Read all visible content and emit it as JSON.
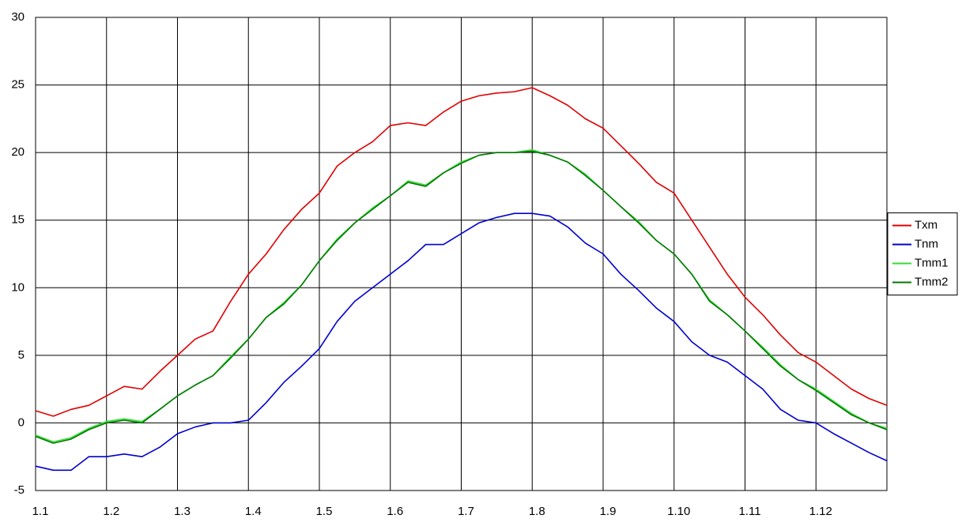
{
  "chart_data": {
    "type": "line",
    "categories": [
      "1.1",
      null,
      null,
      null,
      "1.2",
      null,
      null,
      null,
      "1.3",
      null,
      null,
      null,
      "1.4",
      null,
      null,
      null,
      "1.5",
      null,
      null,
      null,
      "1.6",
      null,
      null,
      null,
      "1.7",
      null,
      null,
      null,
      "1.8",
      null,
      null,
      null,
      "1.9",
      null,
      null,
      null,
      "1.10",
      null,
      null,
      null,
      "1.11",
      null,
      null,
      null,
      "1.12",
      null,
      null,
      null,
      null
    ],
    "series": [
      {
        "name": "Txm",
        "color": "#e00000",
        "values": [
          0.9,
          0.5,
          1.0,
          1.3,
          2.0,
          2.7,
          2.5,
          3.8,
          5.0,
          6.2,
          6.8,
          9.0,
          11.0,
          12.5,
          14.3,
          15.8,
          17.0,
          19.0,
          20.0,
          20.8,
          22.0,
          22.2,
          22.0,
          23.0,
          23.8,
          24.2,
          24.4,
          24.5,
          24.8,
          24.2,
          23.5,
          22.5,
          21.8,
          20.5,
          19.2,
          17.8,
          17.0,
          15.0,
          13.0,
          11.0,
          9.3,
          8.0,
          6.5,
          5.2,
          4.5,
          3.5,
          2.5,
          1.8,
          1.3
        ]
      },
      {
        "name": "Tnm",
        "color": "#0000d0",
        "values": [
          -3.2,
          -3.5,
          -3.5,
          -2.5,
          -2.5,
          -2.3,
          -2.5,
          -1.8,
          -0.8,
          -0.3,
          0.0,
          0.0,
          0.2,
          1.5,
          3.0,
          4.2,
          5.5,
          7.5,
          9.0,
          10.0,
          11.0,
          12.0,
          13.2,
          13.2,
          14.0,
          14.8,
          15.2,
          15.5,
          15.5,
          15.3,
          14.5,
          13.3,
          12.5,
          11.0,
          9.8,
          8.5,
          7.5,
          6.0,
          5.0,
          4.5,
          3.5,
          2.5,
          1.0,
          0.2,
          0.0,
          -0.8,
          -1.5,
          -2.2,
          -2.8
        ]
      },
      {
        "name": "Tmm1",
        "color": "#33dd33",
        "values": [
          -0.9,
          -1.4,
          -1.1,
          -0.4,
          0.1,
          0.3,
          0.1,
          1.0,
          2.0,
          2.8,
          3.5,
          4.9,
          6.2,
          7.8,
          8.9,
          10.2,
          12.0,
          13.6,
          14.8,
          15.9,
          16.8,
          17.9,
          17.6,
          18.5,
          19.3,
          19.8,
          20.0,
          20.0,
          20.2,
          19.8,
          19.3,
          18.4,
          17.2,
          16.0,
          14.9,
          13.5,
          12.5,
          11.0,
          9.1,
          8.0,
          6.8,
          5.6,
          4.3,
          3.2,
          2.5,
          1.6,
          0.7,
          0.0,
          -0.4
        ]
      },
      {
        "name": "Tmm2",
        "color": "#007a00",
        "values": [
          -1.0,
          -1.5,
          -1.2,
          -0.5,
          0.0,
          0.2,
          0.0,
          1.0,
          2.0,
          2.8,
          3.5,
          4.8,
          6.2,
          7.8,
          8.8,
          10.2,
          12.0,
          13.5,
          14.8,
          15.8,
          16.8,
          17.8,
          17.5,
          18.5,
          19.2,
          19.8,
          20.0,
          20.0,
          20.1,
          19.8,
          19.3,
          18.3,
          17.2,
          16.0,
          14.8,
          13.5,
          12.5,
          11.0,
          9.0,
          8.0,
          6.8,
          5.5,
          4.2,
          3.2,
          2.4,
          1.5,
          0.6,
          0.0,
          -0.5
        ]
      }
    ],
    "ylim": [
      -5,
      30
    ],
    "yticks": [
      -5,
      0,
      5,
      10,
      15,
      20,
      25,
      30
    ],
    "grid": true,
    "legend": "right"
  }
}
